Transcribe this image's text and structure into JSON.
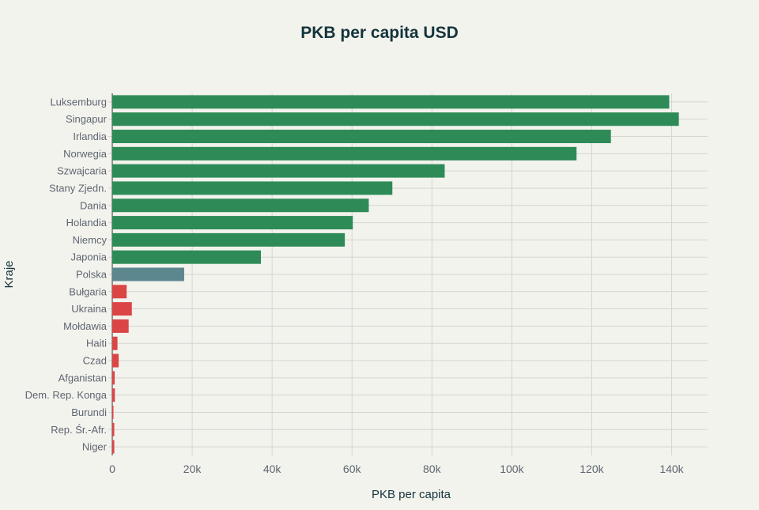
{
  "chart_data": {
    "type": "bar",
    "orientation": "horizontal",
    "title": "PKB per capita USD",
    "xlabel": "PKB per capita",
    "ylabel": "Kraje",
    "xlim": [
      0,
      149000
    ],
    "xticks": [
      0,
      20000,
      40000,
      60000,
      80000,
      100000,
      120000,
      140000
    ],
    "xtick_labels": [
      "0",
      "20k",
      "40k",
      "60k",
      "80k",
      "100k",
      "120k",
      "140k"
    ],
    "grid": true,
    "legend": "none",
    "categories": [
      "Luksemburg",
      "Singapur",
      "Irlandia",
      "Norwegia",
      "Szwajcaria",
      "Stany Zjedn.",
      "Dania",
      "Holandia",
      "Niemcy",
      "Japonia",
      "Polska",
      "Bułgaria",
      "Ukraina",
      "Mołdawia",
      "Haiti",
      "Czad",
      "Afganistan",
      "Dem. Rep. Konga",
      "Burundi",
      "Rep. Śr.-Afr.",
      "Niger"
    ],
    "values": [
      139400,
      141800,
      124800,
      116200,
      83200,
      70100,
      64200,
      60200,
      58200,
      37200,
      18000,
      3600,
      4900,
      4100,
      1300,
      1600,
      600,
      650,
      300,
      500,
      500
    ],
    "groups": [
      "high",
      "high",
      "high",
      "high",
      "high",
      "high",
      "high",
      "high",
      "high",
      "high",
      "poland",
      "low",
      "low",
      "low",
      "low",
      "low",
      "low",
      "low",
      "low",
      "low",
      "low"
    ],
    "colors": {
      "high": "#2e8b57",
      "poland": "#5d878f",
      "low": "#db4545",
      "title": "#13343b",
      "grid": "#d5d5d0",
      "text": "#5e6570"
    }
  }
}
